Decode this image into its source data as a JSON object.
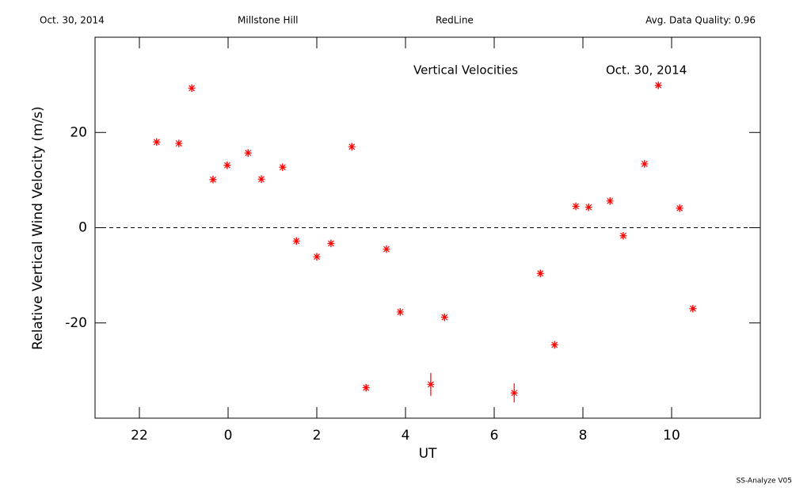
{
  "chart_data": {
    "type": "scatter",
    "header": [
      "Oct. 30, 2014",
      "Millstone Hill",
      "RedLine",
      "Avg. Data Quality: 0.96"
    ],
    "title": "Vertical Velocities",
    "subtitle": "Oct. 30, 2014",
    "x_label": "UT",
    "y_label": "Relative Vertical Wind Velocity (m/s)",
    "footer": "SS-Analyze V05",
    "color": "#ff0000",
    "x": [
      -1.61,
      -1.11,
      -0.82,
      -0.34,
      -0.02,
      0.45,
      0.75,
      1.23,
      1.54,
      2.0,
      2.32,
      2.79,
      3.11,
      3.57,
      3.88,
      4.57,
      4.88,
      6.45,
      7.04,
      7.36,
      7.84,
      8.13,
      8.61,
      8.91,
      9.39,
      9.7,
      10.18,
      10.48
    ],
    "values": [
      18.0,
      17.7,
      29.3,
      10.1,
      13.1,
      15.7,
      10.2,
      12.7,
      -2.8,
      -6.1,
      -3.3,
      17.0,
      -33.6,
      -4.5,
      -17.7,
      -32.9,
      -18.8,
      -34.7,
      -9.6,
      -24.6,
      4.5,
      4.3,
      5.6,
      -1.7,
      13.4,
      29.9,
      4.1,
      -17.0
    ],
    "errors": [
      0.8,
      0.8,
      0.8,
      0.8,
      0.8,
      0.8,
      0.8,
      0.8,
      0.8,
      0.8,
      0.8,
      0.8,
      0.8,
      0.8,
      0.8,
      2.4,
      0.8,
      2.0,
      0.8,
      0.8,
      0.8,
      0.8,
      0.8,
      0.8,
      0.8,
      0.8,
      0.8,
      0.8
    ],
    "xlim": [
      -3,
      12
    ],
    "ylim": [
      -40,
      40
    ],
    "xticks": [
      {
        "value": -2,
        "label": "22"
      },
      0,
      2,
      4,
      6,
      8,
      10
    ],
    "yticks": [
      -20,
      0,
      20
    ],
    "reference_line": 0
  }
}
